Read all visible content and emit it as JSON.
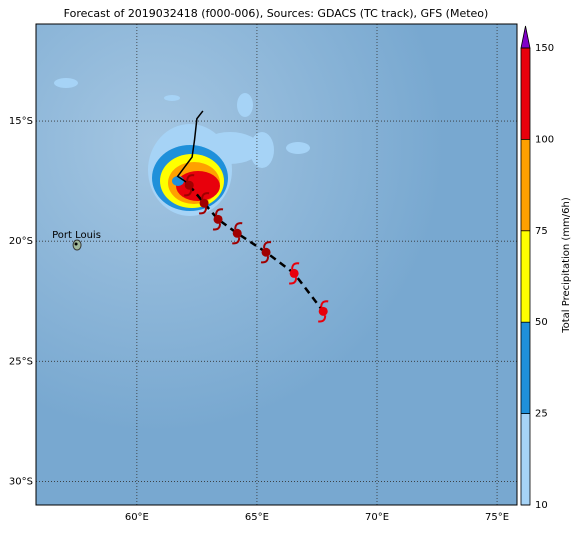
{
  "title": "Forecast of 2019032418 (f000-006), Sources: GDACS (TC track), GFS (Meteo)",
  "map": {
    "lonlim": [
      55.8,
      75.83
    ],
    "latlim": [
      -30.98,
      -10.96
    ],
    "lonticks": [
      {
        "value": 60,
        "label": "60°E"
      },
      {
        "value": 65,
        "label": "65°E"
      },
      {
        "value": 70,
        "label": "70°E"
      },
      {
        "value": 75,
        "label": "75°E"
      }
    ],
    "latticks": [
      {
        "value": -15,
        "label": "15°S"
      },
      {
        "value": -20,
        "label": "20°S"
      },
      {
        "value": -25,
        "label": "25°S"
      },
      {
        "value": -30,
        "label": "30°S"
      }
    ],
    "place": {
      "label": "Port Louis",
      "lon": 57.51,
      "lat": -20.16
    },
    "past_track": {
      "lon": [
        62.75,
        62.5,
        62.4,
        62.3,
        62.0,
        61.7,
        62.0,
        62.18
      ],
      "lat": [
        -14.58,
        -14.9,
        -15.8,
        -16.5,
        -16.9,
        -17.3,
        -17.5,
        -17.67
      ]
    },
    "forecast_track": {
      "lon": [
        62.18,
        62.8,
        63.38,
        64.18,
        65.38,
        66.55,
        67.76
      ],
      "lat": [
        -17.67,
        -18.42,
        -19.09,
        -19.67,
        -20.46,
        -21.34,
        -22.92
      ]
    }
  },
  "colorbar": {
    "label": "Total Precipitation (mm/6h)",
    "levels": [
      10,
      25,
      50,
      75,
      100,
      150
    ],
    "colors": [
      "#a6d3f6",
      "#1f90da",
      "#ffff00",
      "#ffa000",
      "#e8000c"
    ],
    "extend_color": "#8000c8"
  }
}
